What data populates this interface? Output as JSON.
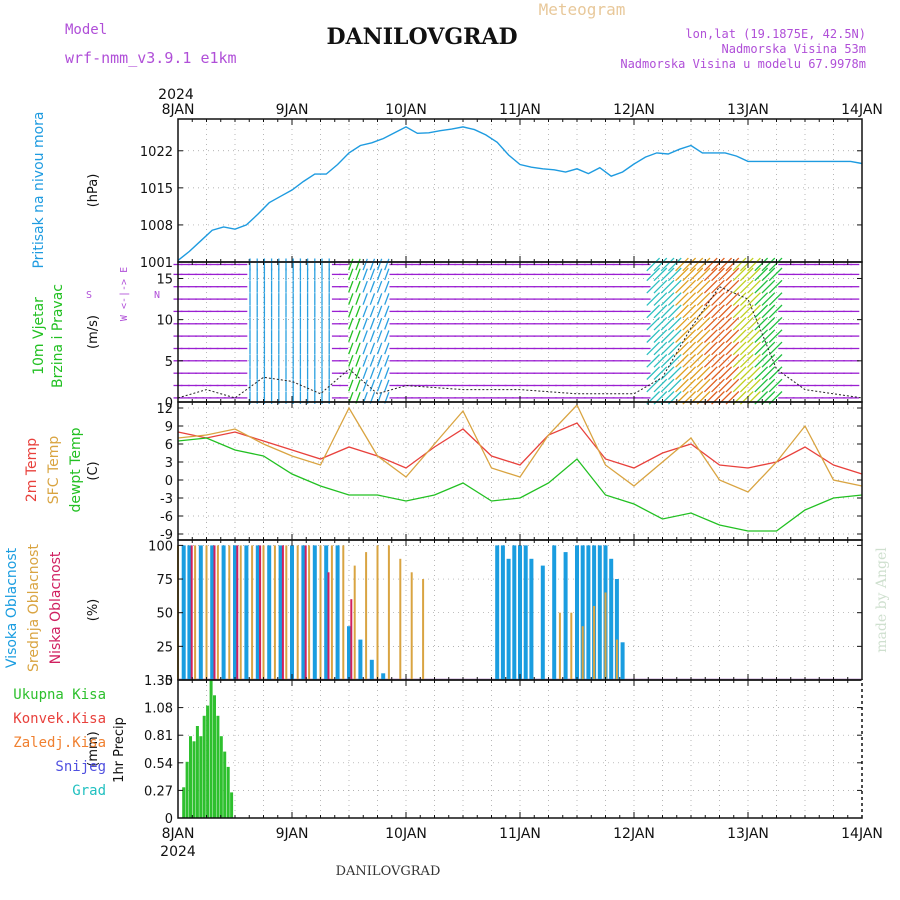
{
  "header": {
    "title": "DANILOVGRAD",
    "subtitle": "Meteogram",
    "model_label": "Model",
    "model_name": "wrf-nmm_v3.9.1 e1km",
    "location_line": "lon,lat (19.1875E, 42.5N)",
    "elevation_line": "Nadmorska Visina 53m",
    "model_elevation_line": "Nadmorska Visina u modelu 67.9978m",
    "footer_title": "DANILOVGRAD",
    "credit": "made by Angel"
  },
  "colors": {
    "pressure": "#1e9be0",
    "temp_2m": "#e8413c",
    "temp_sfc": "#d9a441",
    "dewpoint": "#22c022",
    "wind_barb": "#9a1fd1",
    "cloud_high": "#1a9de0",
    "cloud_mid": "#d9a441",
    "cloud_low": "#d02060",
    "precip_total": "#2ec02e",
    "panel_label_purple": "#b04fd8",
    "grid": "#888888"
  },
  "chart_data": [
    {
      "type": "line",
      "id": "pressure",
      "ylabel_lines": [
        "Pritisak na nivou mora"
      ],
      "unit": "(hPa)",
      "yticks": [
        "1001",
        "1008",
        "1015",
        "1022"
      ],
      "ylim": [
        1001,
        1028
      ],
      "x_days": [
        0,
        0.1,
        0.2,
        0.3,
        0.4,
        0.5,
        0.6,
        0.7,
        0.8,
        0.9,
        1.0,
        1.1,
        1.2,
        1.3,
        1.4,
        1.5,
        1.6,
        1.7,
        1.8,
        1.9,
        2.0,
        2.1,
        2.2,
        2.3,
        2.4,
        2.5,
        2.6,
        2.7,
        2.8,
        2.9,
        3.0,
        3.1,
        3.2,
        3.3,
        3.4,
        3.5,
        3.6,
        3.7,
        3.8,
        3.9,
        4.0,
        4.1,
        4.2,
        4.3,
        4.4,
        4.5,
        4.6,
        4.7,
        4.8,
        4.9,
        5.0,
        5.1,
        5.2,
        5.3,
        5.4,
        5.5,
        5.6,
        5.7,
        5.8,
        5.9,
        6.0
      ],
      "values": [
        1001.3,
        1003.0,
        1005.0,
        1007.0,
        1007.6,
        1007.2,
        1008.0,
        1010.0,
        1012.2,
        1013.4,
        1014.6,
        1016.2,
        1017.6,
        1017.6,
        1019.4,
        1021.6,
        1023.0,
        1023.5,
        1024.3,
        1025.4,
        1026.5,
        1025.3,
        1025.4,
        1025.8,
        1026.1,
        1026.5,
        1026.0,
        1025.0,
        1023.6,
        1021.2,
        1019.4,
        1018.9,
        1018.6,
        1018.4,
        1018.0,
        1018.6,
        1017.7,
        1018.8,
        1017.2,
        1018.0,
        1019.5,
        1020.8,
        1021.6,
        1021.4,
        1022.3,
        1023.0,
        1021.6,
        1021.6,
        1021.6,
        1021.0,
        1020.0,
        1020.0,
        1020.0,
        1020.0,
        1020.0,
        1020.0,
        1020.0,
        1020.0,
        1020.0,
        1020.0,
        1019.6
      ]
    },
    {
      "type": "wind",
      "id": "wind",
      "ylabel_lines": [
        "10m Vjetar",
        "Brzina i Pravac"
      ],
      "unit": "(m/s)",
      "compass_legend": "W <-|-> E",
      "compass_n": "N",
      "compass_s": "S",
      "yticks": [
        "0",
        "5",
        "10",
        "15"
      ],
      "ylim": [
        0,
        17
      ],
      "speed_x_days": [
        0,
        0.25,
        0.5,
        0.75,
        1.0,
        1.25,
        1.5,
        1.75,
        2.0,
        2.5,
        3.0,
        3.5,
        4.0,
        4.25,
        4.5,
        4.75,
        5.0,
        5.25,
        5.5,
        5.75,
        6.0
      ],
      "speed_values": [
        0.5,
        1.5,
        0.5,
        3.0,
        2.5,
        1.0,
        4.0,
        1.0,
        2.0,
        1.5,
        1.5,
        1.0,
        1.0,
        3.0,
        9.0,
        14.0,
        12.5,
        4.0,
        1.5,
        1.0,
        0.5
      ]
    },
    {
      "type": "line",
      "id": "temperature",
      "ylabel_lines": [
        "2m Temp",
        "SFC Temp",
        "dewpt Temp"
      ],
      "unit": "(C)",
      "yticks": [
        "-9",
        "-6",
        "-3",
        "0",
        "3",
        "6",
        "9",
        "12"
      ],
      "ylim": [
        -9,
        12
      ],
      "x_days": [
        0,
        0.25,
        0.5,
        0.75,
        1.0,
        1.25,
        1.5,
        1.75,
        2.0,
        2.25,
        2.5,
        2.75,
        3.0,
        3.25,
        3.5,
        3.75,
        4.0,
        4.25,
        4.5,
        4.75,
        5.0,
        5.25,
        5.5,
        5.75,
        6.0
      ],
      "series": [
        {
          "name": "2m Temp",
          "color_key": "temp_2m",
          "values": [
            8.0,
            7.0,
            8.0,
            6.5,
            5.0,
            3.5,
            5.5,
            4.0,
            2.0,
            5.5,
            8.5,
            4.0,
            2.5,
            7.5,
            9.5,
            3.5,
            2.0,
            4.5,
            6.0,
            2.5,
            2.0,
            3.0,
            5.5,
            2.5,
            1.0
          ]
        },
        {
          "name": "SFC Temp",
          "color_key": "temp_sfc",
          "values": [
            7.0,
            7.5,
            8.5,
            6.0,
            4.0,
            2.5,
            12.0,
            4.0,
            0.5,
            6.0,
            11.5,
            2.0,
            0.5,
            7.5,
            12.5,
            2.5,
            -1.0,
            3.0,
            7.0,
            0.0,
            -2.0,
            3.0,
            9.0,
            0.0,
            -1.0
          ]
        },
        {
          "name": "dewpt Temp",
          "color_key": "dewpoint",
          "values": [
            6.5,
            7.0,
            5.0,
            4.0,
            1.0,
            -1.0,
            -2.5,
            -2.5,
            -3.5,
            -2.5,
            -0.5,
            -3.5,
            -3.0,
            -0.5,
            3.5,
            -2.5,
            -4.0,
            -6.5,
            -5.5,
            -7.5,
            -8.5,
            -8.5,
            -5.0,
            -3.0,
            -2.5
          ]
        }
      ]
    },
    {
      "type": "bar",
      "id": "clouds",
      "ylabel_lines": [
        "Visoka Oblacnost",
        "Srednja Oblacnost",
        "Niska Oblacnost"
      ],
      "unit": "(%)",
      "yticks": [
        "0",
        "25",
        "50",
        "75",
        "100"
      ],
      "ylim": [
        0,
        100
      ],
      "series": [
        {
          "name": "Visoka Oblacnost",
          "color_key": "cloud_high",
          "x_days": [
            0.05,
            0.1,
            0.2,
            0.3,
            0.4,
            0.5,
            0.6,
            0.7,
            0.8,
            0.9,
            1.0,
            1.1,
            1.2,
            1.3,
            1.4,
            1.5,
            1.6,
            1.7,
            1.8,
            2.8,
            2.85,
            2.9,
            2.95,
            3.0,
            3.05,
            3.1,
            3.2,
            3.3,
            3.4,
            3.5,
            3.55,
            3.6,
            3.65,
            3.7,
            3.75,
            3.8,
            3.85,
            3.9
          ],
          "values": [
            100,
            100,
            100,
            100,
            100,
            100,
            100,
            100,
            100,
            100,
            100,
            100,
            100,
            100,
            100,
            40,
            30,
            15,
            5,
            100,
            100,
            90,
            100,
            100,
            100,
            90,
            85,
            100,
            95,
            100,
            100,
            100,
            100,
            100,
            100,
            90,
            75,
            28
          ]
        },
        {
          "name": "Srednja Oblacnost",
          "color_key": "cloud_mid",
          "x_days": [
            0.0,
            0.15,
            0.25,
            0.35,
            0.45,
            0.55,
            0.65,
            0.75,
            0.85,
            0.95,
            1.05,
            1.15,
            1.25,
            1.35,
            1.45,
            1.55,
            1.65,
            1.75,
            1.85,
            1.95,
            2.05,
            2.15,
            3.35,
            3.45,
            3.55,
            3.65,
            3.75,
            3.85
          ],
          "values": [
            100,
            100,
            100,
            100,
            100,
            100,
            100,
            100,
            100,
            100,
            100,
            100,
            100,
            100,
            100,
            85,
            95,
            100,
            100,
            90,
            80,
            75,
            50,
            50,
            40,
            55,
            65,
            30
          ]
        },
        {
          "name": "Niska Oblacnost",
          "color_key": "cloud_low",
          "x_days": [
            0.12,
            0.32,
            0.52,
            0.72,
            0.92,
            1.12,
            1.32,
            1.52
          ],
          "values": [
            100,
            100,
            100,
            100,
            100,
            100,
            80,
            60
          ]
        }
      ]
    },
    {
      "type": "bar",
      "id": "precip",
      "ylabel_lines": [
        "1hr Precip"
      ],
      "unit": "(mm)",
      "yticks": [
        "0",
        "0.27",
        "0.54",
        "0.81",
        "1.08",
        "1.35"
      ],
      "ylim": [
        0,
        1.35
      ],
      "legend": [
        {
          "name": "Ukupna Kisa",
          "color": "#2ec02e"
        },
        {
          "name": "Konvek.Kisa",
          "color": "#e8413c"
        },
        {
          "name": "Zaledj.Kisa",
          "color": "#f08030"
        },
        {
          "name": "Snijeg",
          "color": "#5050e0"
        },
        {
          "name": "Grad",
          "color": "#20c0c0"
        }
      ],
      "x_days": [
        0.05,
        0.08,
        0.11,
        0.14,
        0.17,
        0.2,
        0.23,
        0.26,
        0.29,
        0.32,
        0.35,
        0.38,
        0.41,
        0.44,
        0.47
      ],
      "values": [
        0.3,
        0.55,
        0.8,
        0.75,
        0.9,
        0.8,
        1.0,
        1.1,
        1.35,
        1.2,
        1.0,
        0.8,
        0.65,
        0.5,
        0.25
      ]
    }
  ],
  "time_axis": {
    "year": "2024",
    "labels": [
      "8JAN",
      "9JAN",
      "10JAN",
      "11JAN",
      "12JAN",
      "13JAN",
      "14JAN"
    ]
  }
}
